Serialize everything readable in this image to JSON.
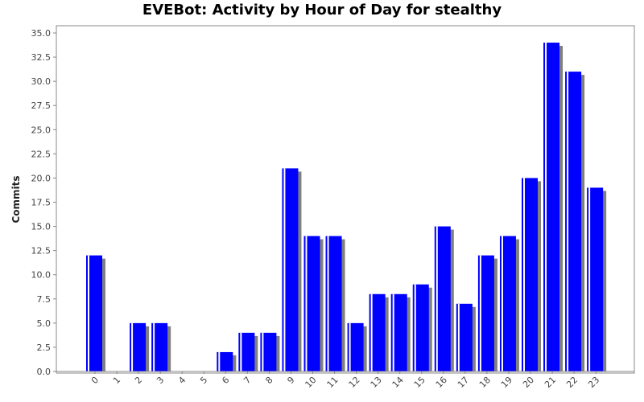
{
  "chart_data": {
    "type": "bar",
    "title": "EVEBot: Activity by Hour of Day for stealthy",
    "xlabel": "",
    "ylabel": "Commits",
    "ylim": [
      0,
      35
    ],
    "categories": [
      "0",
      "1",
      "2",
      "3",
      "4",
      "5",
      "6",
      "7",
      "8",
      "9",
      "10",
      "11",
      "12",
      "13",
      "14",
      "15",
      "16",
      "17",
      "18",
      "19",
      "20",
      "21",
      "22",
      "23"
    ],
    "values": [
      12,
      0,
      5,
      5,
      0,
      0,
      2,
      4,
      4,
      21,
      14,
      14,
      5,
      8,
      8,
      9,
      15,
      7,
      12,
      14,
      20,
      34,
      31,
      19
    ],
    "y_ticks": [
      "0.0",
      "2.5",
      "5.0",
      "7.5",
      "10.0",
      "12.5",
      "15.0",
      "17.5",
      "20.0",
      "22.5",
      "25.0",
      "27.5",
      "30.0",
      "32.5",
      "35.0"
    ],
    "grid": false,
    "bar_color": "#0000ff",
    "shadow_color": "#808080"
  }
}
